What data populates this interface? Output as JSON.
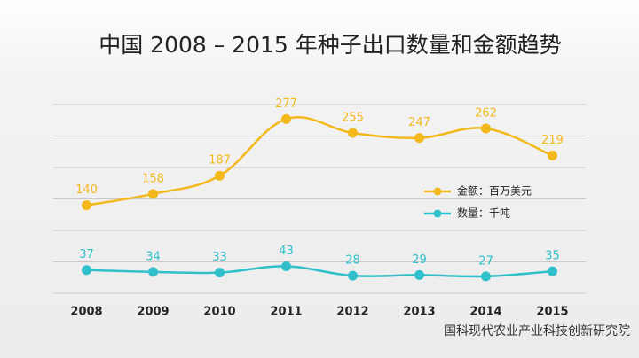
{
  "chart_data": {
    "type": "line",
    "title": "中国 2008 – 2015 年种子出口数量和金额趋势",
    "categories": [
      "2008",
      "2009",
      "2010",
      "2011",
      "2012",
      "2013",
      "2014",
      "2015"
    ],
    "series": [
      {
        "name": "金额：百万美元",
        "color": "#f2b81c",
        "values": [
          140,
          158,
          187,
          277,
          255,
          247,
          262,
          219
        ]
      },
      {
        "name": "数量：千吨",
        "color": "#2fc0cc",
        "values": [
          37,
          34,
          33,
          43,
          28,
          29,
          27,
          35
        ]
      }
    ],
    "ylim": [
      0,
      300
    ],
    "yticks": [
      0,
      50,
      100,
      150,
      200,
      250,
      300
    ],
    "grid": true,
    "watermark": "国科现代农业产业科技创新研究院"
  }
}
